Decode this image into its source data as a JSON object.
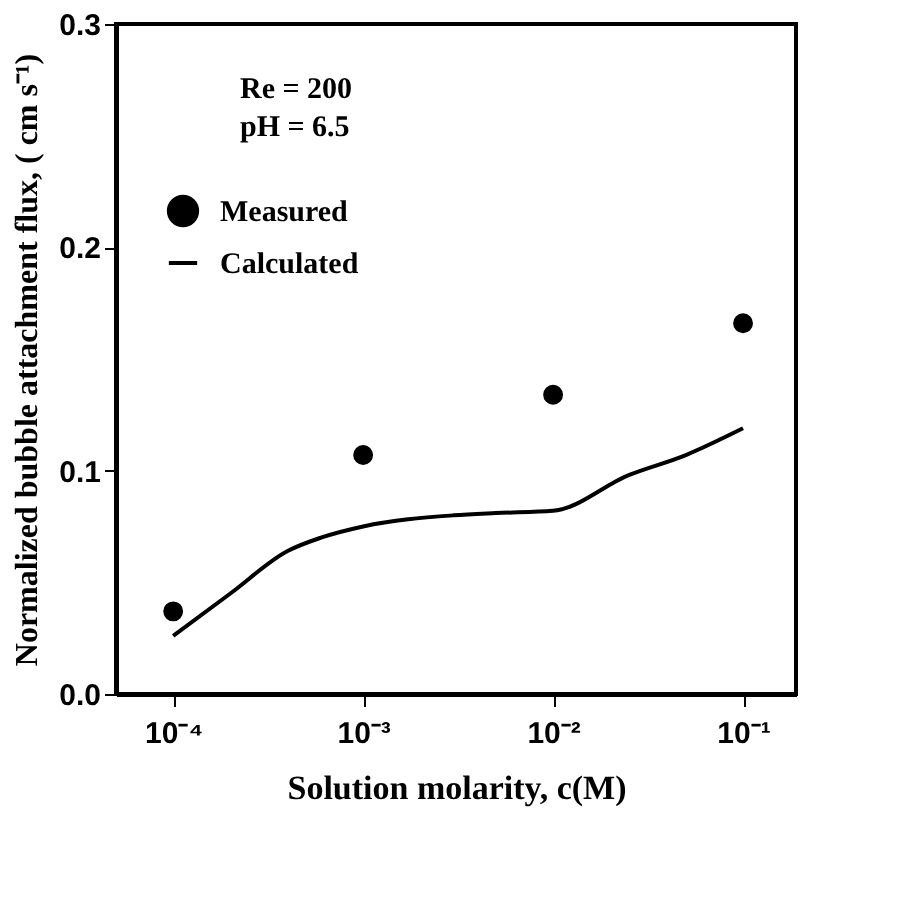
{
  "chart_data": {
    "type": "scatter",
    "xlabel": "Solution molarity,  c(M)",
    "ylabel": "Normalized bubble attachment flux, ( cm s⁻¹)",
    "annotations": [
      "Re = 200",
      "pH = 6.5"
    ],
    "log": "x",
    "xlim": [
      5e-05,
      0.19
    ],
    "ylim": [
      0,
      0.3
    ],
    "xticks": [
      {
        "value": 0.0001,
        "label": "10⁻⁴"
      },
      {
        "value": 0.001,
        "label": "10⁻³"
      },
      {
        "value": 0.01,
        "label": "10⁻²"
      },
      {
        "value": 0.1,
        "label": "10⁻¹"
      }
    ],
    "yticks": [
      {
        "value": 0,
        "label": "0.0"
      },
      {
        "value": 0.1,
        "label": "0.1"
      },
      {
        "value": 0.2,
        "label": "0.2"
      },
      {
        "value": 0.3,
        "label": "0.3"
      }
    ],
    "grid": false,
    "legend": "top left",
    "series": [
      {
        "name": "Measured",
        "marker": "circle",
        "color": "#000000",
        "x": [
          0.0001,
          0.001,
          0.01,
          0.1
        ],
        "values": [
          0.037,
          0.107,
          0.134,
          0.166
        ]
      },
      {
        "name": "Calculated",
        "type": "line",
        "line_style": "solid",
        "color": "#000000",
        "x": [
          0.0001,
          0.0002,
          0.0004,
          0.0006,
          0.001,
          0.003,
          0.005,
          0.01,
          0.025,
          0.05,
          0.1
        ],
        "values": [
          0.026,
          0.045,
          0.064,
          0.07,
          0.075,
          0.08,
          0.081,
          0.082,
          0.098,
          0.107,
          0.119
        ]
      }
    ]
  }
}
